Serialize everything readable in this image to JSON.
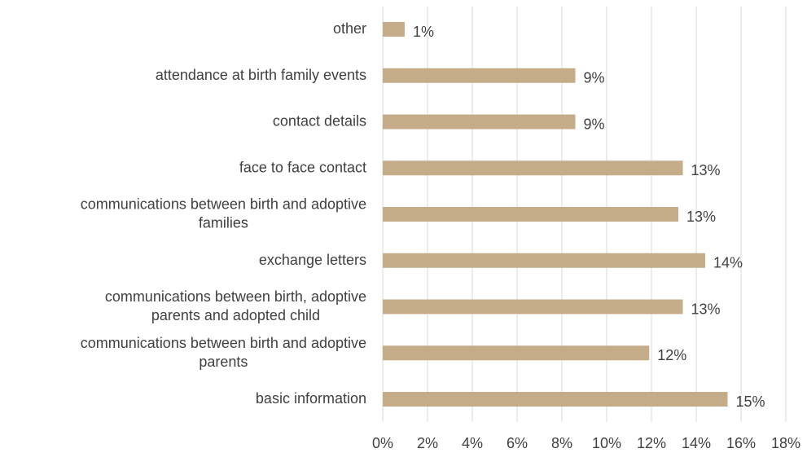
{
  "chart_data": {
    "type": "bar",
    "orientation": "horizontal",
    "categories": [
      "other",
      "attendance at birth family events",
      "contact details",
      "face to face contact",
      "communications between birth and adoptive\nfamilies",
      "exchange letters",
      "communications between  birth,  adoptive\nparents and adopted child",
      "communications between birth and adoptive\nparents",
      "basic information"
    ],
    "values": [
      0.98,
      8.6,
      8.6,
      13.4,
      13.2,
      14.4,
      13.4,
      11.9,
      15.4
    ],
    "value_labels": [
      "1%",
      "9%",
      "9%",
      "13%",
      "13%",
      "14%",
      "13%",
      "12%",
      "15%"
    ],
    "color": "#c4ac88",
    "xlim": [
      0,
      18
    ],
    "xticks": [
      {
        "value": 0,
        "label": "0%"
      },
      {
        "value": 2,
        "label": "2%"
      },
      {
        "value": 4,
        "label": "4%"
      },
      {
        "value": 6,
        "label": "6%"
      },
      {
        "value": 8,
        "label": "8%"
      },
      {
        "value": 10,
        "label": "10%"
      },
      {
        "value": 12,
        "label": "12%"
      },
      {
        "value": 14,
        "label": "14%"
      },
      {
        "value": 16,
        "label": "16%"
      },
      {
        "value": 18,
        "label": "18%"
      }
    ],
    "grid": true
  }
}
